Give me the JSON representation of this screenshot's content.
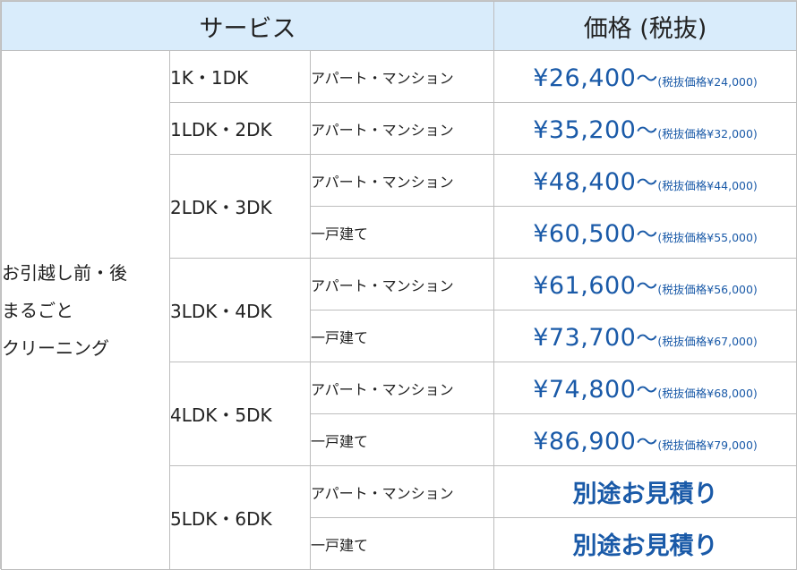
{
  "header": {
    "service": "サービス",
    "price": "価格 (税抜)"
  },
  "service_name": [
    "お引越し前・後",
    "まるごと",
    "クリーニング"
  ],
  "rooms": {
    "r1": "1K・1DK",
    "r2": "1LDK・2DK",
    "r3": "2LDK・3DK",
    "r4": "3LDK・4DK",
    "r5": "4LDK・5DK",
    "r6": "5LDK・6DK"
  },
  "types": {
    "apt": "アパート・マンション",
    "house": "一戸建て"
  },
  "tilde": "〜",
  "prices": [
    {
      "amount": "¥26,400",
      "note": "(税抜価格¥24,000)"
    },
    {
      "amount": "¥35,200",
      "note": "(税抜価格¥32,000)"
    },
    {
      "amount": "¥48,400",
      "note": "(税抜価格¥44,000)"
    },
    {
      "amount": "¥60,500",
      "note": "(税抜価格¥55,000)"
    },
    {
      "amount": "¥61,600",
      "note": "(税抜価格¥56,000)"
    },
    {
      "amount": "¥73,700",
      "note": "(税抜価格¥67,000)"
    },
    {
      "amount": "¥74,800",
      "note": "(税抜価格¥68,000)"
    },
    {
      "amount": "¥86,900",
      "note": "(税抜価格¥79,000)"
    }
  ],
  "quote": "別途お見積り",
  "colors": {
    "header_bg": "#d9ecfb",
    "price_blue": "#1a5aa8",
    "border": "#bdbdbd"
  }
}
